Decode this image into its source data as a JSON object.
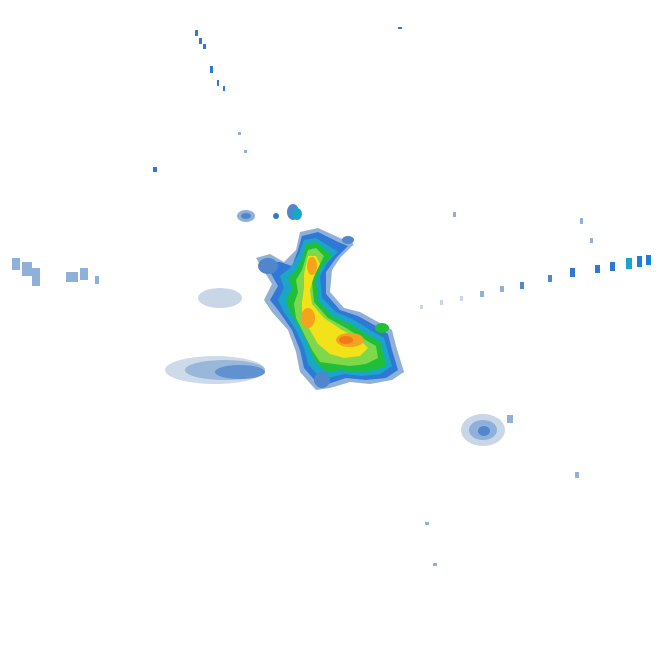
{
  "colors": {
    "background": "#ffffff",
    "very_light": "#c8d6e8",
    "light": "#8fb0d8",
    "medium_blue": "#4f86cc",
    "blue": "#2f78d6",
    "teal": "#1aa6c8",
    "green": "#1fbf3a",
    "light_green": "#7fd84a",
    "yellow": "#f2e21a",
    "orange": "#f5a21c",
    "dark_orange": "#ee7a18"
  },
  "echo_layers": [
    "very_light",
    "light",
    "medium_blue",
    "blue",
    "teal",
    "green",
    "light_green",
    "yellow",
    "orange",
    "dark_orange"
  ]
}
